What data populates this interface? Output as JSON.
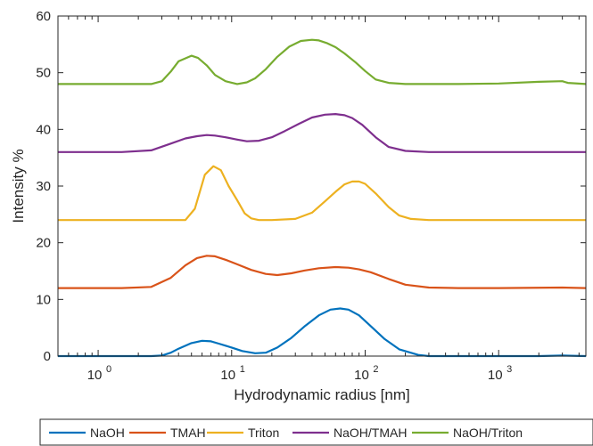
{
  "chart_data": {
    "type": "line",
    "title": "",
    "xlabel": "Hydrodynamic radius [nm]",
    "ylabel": "Intensity %",
    "xscale": "log",
    "xlim": [
      0.5,
      4500
    ],
    "ylim": [
      0,
      60
    ],
    "yticks": [
      0,
      10,
      20,
      30,
      40,
      50,
      60
    ],
    "xticks": [
      {
        "value": 1,
        "label": "10",
        "exp": "0"
      },
      {
        "value": 10,
        "label": "10",
        "exp": "1"
      },
      {
        "value": 100,
        "label": "10",
        "exp": "2"
      },
      {
        "value": 1000,
        "label": "10",
        "exp": "3"
      }
    ],
    "grid": false,
    "legend_position": "bottom",
    "series": [
      {
        "name": "NaOH",
        "color": "#0072BD",
        "x": [
          0.5,
          2.5,
          3,
          3.5,
          4,
          5,
          6,
          7,
          8,
          10,
          12,
          15,
          18,
          22,
          28,
          35,
          45,
          55,
          65,
          75,
          90,
          110,
          140,
          180,
          250,
          300,
          500,
          1000,
          2000,
          3000,
          4500
        ],
        "y": [
          0,
          0,
          0.1,
          0.6,
          1.3,
          2.3,
          2.7,
          2.6,
          2.2,
          1.5,
          0.9,
          0.5,
          0.6,
          1.5,
          3.2,
          5.2,
          7.2,
          8.2,
          8.4,
          8.2,
          7.2,
          5.3,
          3.0,
          1.2,
          0.2,
          0,
          0,
          0,
          0,
          0.1,
          0
        ]
      },
      {
        "name": "TMAH",
        "color": "#D95319",
        "x": [
          0.5,
          1.5,
          2.5,
          3.5,
          4.5,
          5.5,
          6.5,
          7.5,
          9,
          11,
          14,
          18,
          22,
          28,
          35,
          45,
          60,
          75,
          90,
          110,
          150,
          200,
          300,
          500,
          1000,
          3000,
          4500
        ],
        "y": [
          12,
          12,
          12.2,
          13.8,
          16.0,
          17.3,
          17.7,
          17.6,
          17.0,
          16.2,
          15.2,
          14.5,
          14.3,
          14.6,
          15.1,
          15.5,
          15.7,
          15.6,
          15.3,
          14.8,
          13.6,
          12.6,
          12.1,
          12,
          12,
          12.1,
          12
        ]
      },
      {
        "name": "Triton",
        "color": "#EDB120",
        "x": [
          0.5,
          3,
          4.5,
          5.3,
          6.3,
          7.3,
          8.3,
          9.5,
          11,
          12.5,
          14,
          16,
          20,
          30,
          40,
          50,
          60,
          70,
          80,
          90,
          100,
          120,
          150,
          180,
          220,
          300,
          1000,
          4500
        ],
        "y": [
          24,
          24,
          24,
          26,
          32,
          33.5,
          32.8,
          30,
          27.5,
          25.2,
          24.3,
          24,
          24,
          24.2,
          25.3,
          27.3,
          29.0,
          30.3,
          30.8,
          30.8,
          30.4,
          28.7,
          26.3,
          24.8,
          24.2,
          24,
          24,
          24
        ]
      },
      {
        "name": "NaOH/TMAH",
        "color": "#7E2F8E",
        "x": [
          0.5,
          1.5,
          2.5,
          3.5,
          4.5,
          5.5,
          6.5,
          7.5,
          9,
          11,
          13,
          16,
          20,
          25,
          32,
          40,
          50,
          60,
          70,
          80,
          95,
          120,
          150,
          200,
          300,
          500,
          1000,
          4500
        ],
        "y": [
          36,
          36,
          36.3,
          37.5,
          38.4,
          38.8,
          39.0,
          38.9,
          38.6,
          38.2,
          37.9,
          38.0,
          38.6,
          39.7,
          41.0,
          42.1,
          42.6,
          42.7,
          42.5,
          42.0,
          40.8,
          38.6,
          36.9,
          36.2,
          36,
          36,
          36,
          36
        ]
      },
      {
        "name": "NaOH/Triton",
        "color": "#77AC30",
        "x": [
          0.5,
          2.5,
          3,
          3.5,
          4,
          5,
          5.6,
          6.5,
          7.5,
          9,
          11,
          13,
          15,
          18,
          22,
          27,
          33,
          40,
          45,
          52,
          60,
          70,
          85,
          100,
          120,
          150,
          200,
          300,
          500,
          1000,
          2000,
          3000,
          3300,
          4500
        ],
        "y": [
          48,
          48,
          48.5,
          50.2,
          52.0,
          53.0,
          52.6,
          51.3,
          49.6,
          48.5,
          48.0,
          48.3,
          49.0,
          50.6,
          52.8,
          54.6,
          55.6,
          55.8,
          55.7,
          55.2,
          54.5,
          53.4,
          51.8,
          50.3,
          48.8,
          48.2,
          48,
          48,
          48,
          48.1,
          48.4,
          48.5,
          48.2,
          48
        ]
      }
    ]
  }
}
